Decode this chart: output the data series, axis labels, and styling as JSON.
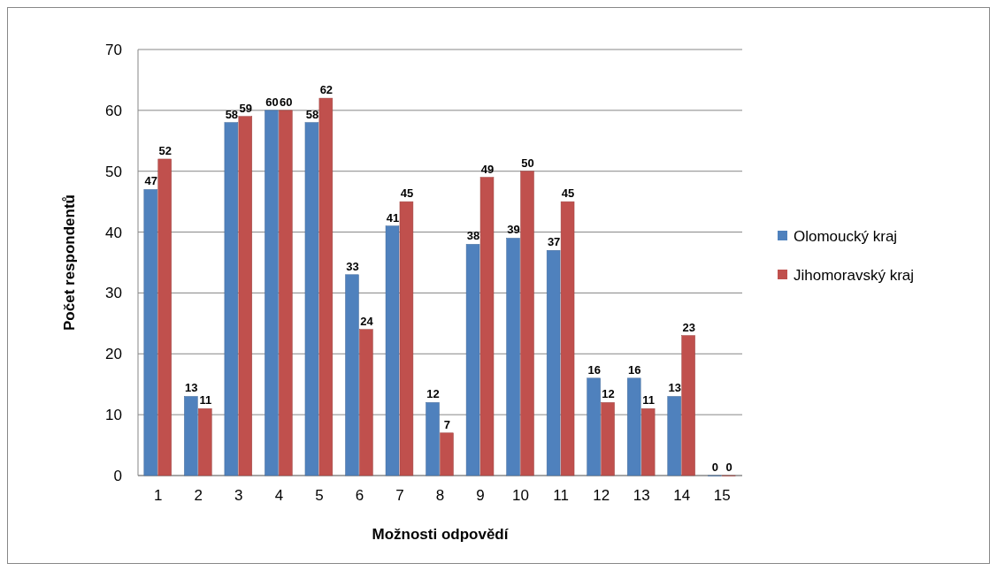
{
  "chart_data": {
    "type": "bar",
    "xlabel": "Možnosti odpovědí",
    "ylabel": "Počet respondentů",
    "categories": [
      "1",
      "2",
      "3",
      "4",
      "5",
      "6",
      "7",
      "8",
      "9",
      "10",
      "11",
      "12",
      "13",
      "14",
      "15"
    ],
    "series": [
      {
        "name": "Olomoucký kraj",
        "color": "#4f81bd",
        "values": [
          47,
          13,
          58,
          60,
          58,
          33,
          41,
          12,
          38,
          39,
          37,
          16,
          16,
          13,
          0
        ]
      },
      {
        "name": "Jihomoravský kraj",
        "color": "#c0504d",
        "values": [
          52,
          11,
          59,
          60,
          62,
          24,
          45,
          7,
          49,
          50,
          45,
          12,
          11,
          23,
          0
        ]
      }
    ],
    "ylim": [
      0,
      70
    ],
    "yticks": [
      0,
      10,
      20,
      30,
      40,
      50,
      60,
      70
    ],
    "grid": "y",
    "legend": "right",
    "data_labels": true
  }
}
